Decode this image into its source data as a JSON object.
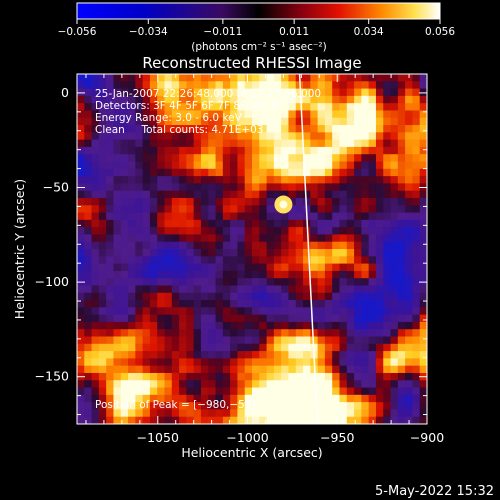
{
  "chart_data": {
    "type": "heatmap",
    "title": "Reconstructed RHESSI Image",
    "xlabel": "Heliocentric X (arcsec)",
    "ylabel": "Heliocentric Y (arcsec)",
    "xlim": [
      -1095,
      -900
    ],
    "ylim": [
      -175,
      10
    ],
    "x_ticks": [
      -1050,
      -1000,
      -950,
      -900
    ],
    "x_tick_labels": [
      "−1050",
      "−1000",
      "−950",
      "−900"
    ],
    "y_ticks": [
      0,
      -50,
      -100,
      -150
    ],
    "y_tick_labels": [
      "0",
      "−50",
      "−100",
      "−150"
    ],
    "colorbar": {
      "ticks": [
        -0.056,
        -0.034,
        -0.011,
        0.011,
        0.034,
        0.056
      ],
      "tick_labels": [
        "−0.056",
        "−0.034",
        "−0.011",
        "0.011",
        "0.034",
        "0.056"
      ],
      "units_label": "(photons cm⁻² s⁻¹ asec⁻²)"
    },
    "annotations": [
      "25-Jan-2007 22:26:48.000 to 22:27:56.000",
      "Detectors: 3F 4F 5F 6F 7F 8F, Att 0",
      "Energy Range: 3.0 - 6.0 keV",
      "Clean     Total counts: 4.71E+03",
      "Position of Peak = [−980,−59]"
    ],
    "peak": {
      "x": -980,
      "y": -59
    },
    "limb_line": [
      {
        "x": -971,
        "y": 10
      },
      {
        "x": -961,
        "y": -175
      }
    ],
    "colors": {
      "low": "#0000ff",
      "mid": "#000000",
      "purple": "#4a1480",
      "high": "#ffffff",
      "line": "#ffffff"
    },
    "timestamp": "5-May-2022 15:32"
  }
}
